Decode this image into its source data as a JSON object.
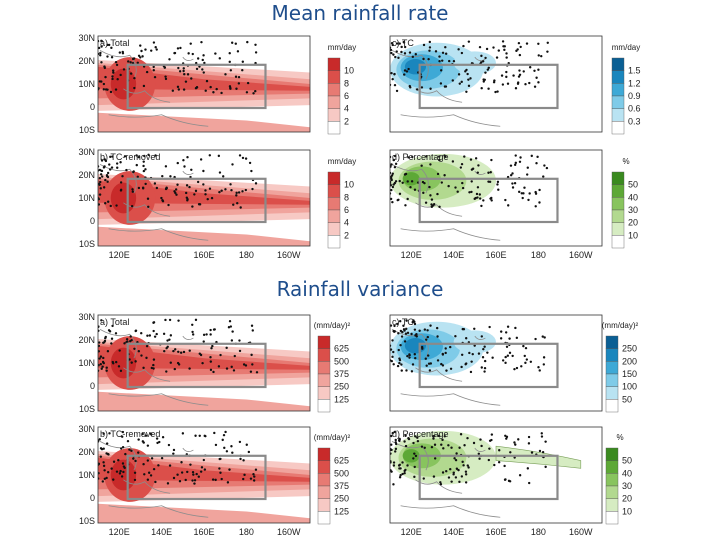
{
  "titles": {
    "top": "Mean rainfall rate",
    "bottom": "Rainfall variance"
  },
  "colors": {
    "red_scale": [
      "#ffffff",
      "#f7c9c4",
      "#f0a49d",
      "#e77a73",
      "#db4f4a",
      "#c82a2a"
    ],
    "blue_scale": [
      "#ffffff",
      "#b9e3f2",
      "#7fcbe8",
      "#3ea9d6",
      "#1a86bd",
      "#0a5f94"
    ],
    "green_scale": [
      "#ffffff",
      "#d6ecc2",
      "#b2d98f",
      "#88c45e",
      "#5da836",
      "#3a8a1f"
    ]
  },
  "map_axes": {
    "lat_labels": [
      "30N",
      "20N",
      "10N",
      "0",
      "10S"
    ],
    "lon_labels": [
      "120E",
      "140E",
      "160E",
      "180",
      "160W"
    ]
  },
  "panels": [
    {
      "id": "top-a",
      "label": "a) Total",
      "scheme": "red",
      "unit": "mm/day",
      "ticks": [
        "10",
        "8",
        "6",
        "4",
        "2"
      ]
    },
    {
      "id": "top-c",
      "label": "c) TC",
      "scheme": "blue",
      "unit": "mm/day",
      "ticks": [
        "1.5",
        "1.2",
        "0.9",
        "0.6",
        "0.3"
      ]
    },
    {
      "id": "top-b",
      "label": "b) TC-removed",
      "scheme": "red",
      "unit": "mm/day",
      "ticks": [
        "10",
        "8",
        "6",
        "4",
        "2"
      ]
    },
    {
      "id": "top-d",
      "label": "d) Percentage",
      "scheme": "green",
      "unit": "%",
      "ticks": [
        "50",
        "40",
        "30",
        "20",
        "10"
      ]
    },
    {
      "id": "bot-a",
      "label": "a) Total",
      "scheme": "red",
      "unit": "(mm/day)²",
      "ticks": [
        "625",
        "500",
        "375",
        "250",
        "125"
      ]
    },
    {
      "id": "bot-c",
      "label": "c) TC",
      "scheme": "blue",
      "unit": "(mm/day)²",
      "ticks": [
        "250",
        "200",
        "150",
        "100",
        "50"
      ]
    },
    {
      "id": "bot-b",
      "label": "b) TC-removed",
      "scheme": "red",
      "unit": "(mm/day)²",
      "ticks": [
        "625",
        "500",
        "375",
        "250",
        "125"
      ]
    },
    {
      "id": "bot-d",
      "label": "d) Percentage",
      "scheme": "green",
      "unit": "%",
      "ticks": [
        "50",
        "40",
        "30",
        "20",
        "10"
      ]
    }
  ]
}
